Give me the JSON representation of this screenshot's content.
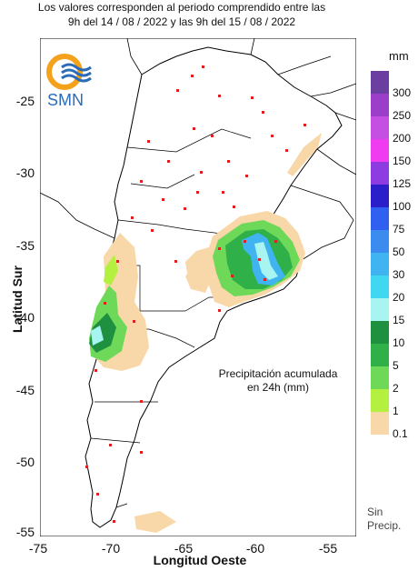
{
  "header": {
    "line1": "Los valores corresponden al periodo comprendido entre las",
    "line2": "9h del 14 / 08 / 2022  y las 9h del 15 / 08 / 2022"
  },
  "logo": {
    "text": "SMN",
    "icon": "smn-logo-icon"
  },
  "axes": {
    "ylabel": "Latitud Sur",
    "xlabel": "Longitud Oeste",
    "yticks": [
      "-25",
      "-30",
      "-35",
      "-40",
      "-45",
      "-50",
      "-55"
    ],
    "xticks": [
      "-75",
      "-70",
      "-65",
      "-60",
      "-55"
    ],
    "xlim": [
      -75,
      -53
    ],
    "ylim": [
      -55.5,
      -21.5
    ]
  },
  "caption": {
    "line1": "Precipitación acumulada",
    "line2": "en 24h (mm)"
  },
  "legend": {
    "unit": "mm",
    "items": [
      {
        "label": "300",
        "color": "#6b3fa0"
      },
      {
        "label": "250",
        "color": "#9b3fc8"
      },
      {
        "label": "200",
        "color": "#c54fe0"
      },
      {
        "label": "150",
        "color": "#f03cf0"
      },
      {
        "label": "125",
        "color": "#8c3ce0"
      },
      {
        "label": "100",
        "color": "#2a1fc8"
      },
      {
        "label": "75",
        "color": "#3060f0"
      },
      {
        "label": "50",
        "color": "#3c8cf0"
      },
      {
        "label": "30",
        "color": "#40b4f0"
      },
      {
        "label": "20",
        "color": "#40d8f0"
      },
      {
        "label": "15",
        "color": "#a8f4f0"
      },
      {
        "label": "10",
        "color": "#1e9040"
      },
      {
        "label": "5",
        "color": "#30b048"
      },
      {
        "label": "2",
        "color": "#6ed858"
      },
      {
        "label": "1",
        "color": "#b4f040"
      },
      {
        "label": "0.1",
        "color": "#f8d8a8"
      }
    ],
    "none_label_1": "Sin",
    "none_label_2": "Precip."
  },
  "colors": {
    "land": "#ffffff",
    "border": "#000000",
    "station": "#e02020",
    "light": "#f8d8a8",
    "green_light": "#b4f040",
    "green": "#6ed858",
    "green_mid": "#30b048",
    "green_dark": "#1e9040",
    "cyan": "#a8f4f0",
    "blue_light": "#40d8f0",
    "blue": "#40b4f0"
  }
}
